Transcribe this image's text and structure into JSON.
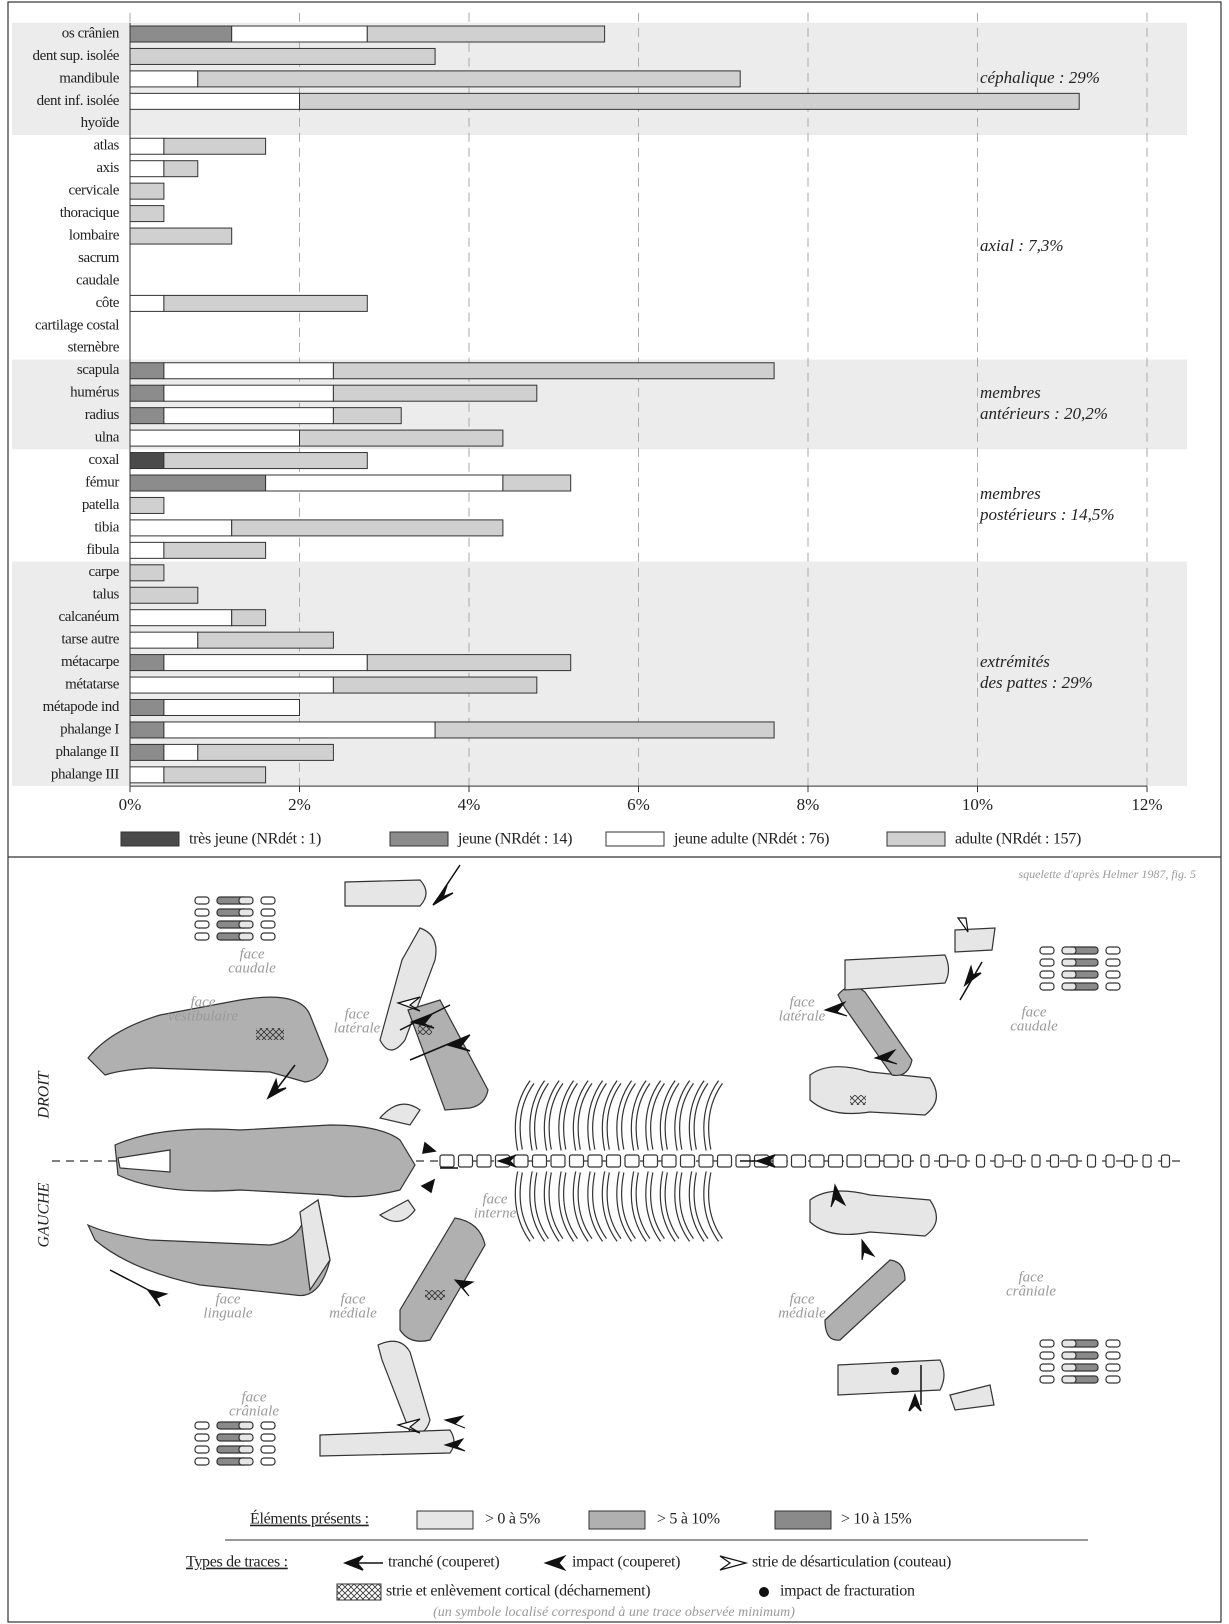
{
  "chart_data": {
    "type": "stacked-barh",
    "categories": [
      "os crânien",
      "dent sup. isolée",
      "mandibule",
      "dent inf. isolée",
      "hyoïde",
      "atlas",
      "axis",
      "cervicale",
      "thoracique",
      "lombaire",
      "sacrum",
      "caudale",
      "côte",
      "cartilage costal",
      "sternèbre",
      "scapula",
      "humérus",
      "radius",
      "ulna",
      "coxal",
      "fémur",
      "patella",
      "tibia",
      "fibula",
      "carpe",
      "talus",
      "calcanéum",
      "tarse autre",
      "métacarpe",
      "métatarse",
      "métapode ind",
      "phalange I",
      "phalange II",
      "phalange III"
    ],
    "series": [
      {
        "name": "très jeune (NRdét : 1)",
        "color": "#4a4a4a",
        "values": [
          null,
          null,
          null,
          null,
          null,
          null,
          null,
          null,
          null,
          null,
          null,
          null,
          null,
          null,
          null,
          null,
          null,
          null,
          null,
          0.4,
          null,
          null,
          null,
          null,
          null,
          null,
          null,
          null,
          null,
          null,
          null,
          null,
          null,
          null
        ]
      },
      {
        "name": "jeune (NRdét : 14)",
        "color": "#8c8c8c",
        "values": [
          1.2,
          null,
          null,
          null,
          null,
          null,
          null,
          null,
          null,
          null,
          null,
          null,
          null,
          null,
          null,
          0.4,
          0.4,
          0.4,
          null,
          null,
          1.6,
          null,
          null,
          null,
          null,
          null,
          null,
          null,
          0.4,
          null,
          0.4,
          0.4,
          0.4,
          null
        ]
      },
      {
        "name": "jeune adulte (NRdét : 76)",
        "color": "#ffffff",
        "values": [
          1.6,
          null,
          0.8,
          2.0,
          null,
          0.4,
          0.4,
          null,
          null,
          null,
          null,
          null,
          0.4,
          null,
          null,
          2.0,
          2.0,
          2.0,
          2.0,
          null,
          2.8,
          null,
          1.2,
          0.4,
          null,
          null,
          1.2,
          0.8,
          2.4,
          2.4,
          1.6,
          3.2,
          0.4,
          0.4
        ]
      },
      {
        "name": "adulte (NRdét : 157)",
        "color": "#d0d0d0",
        "values": [
          2.8,
          3.6,
          6.4,
          9.2,
          null,
          1.2,
          0.4,
          0.4,
          0.4,
          1.2,
          null,
          null,
          2.4,
          null,
          null,
          5.2,
          2.4,
          0.8,
          2.4,
          2.4,
          0.8,
          0.4,
          3.2,
          1.2,
          0.4,
          0.8,
          0.4,
          1.6,
          2.4,
          2.4,
          null,
          4.0,
          1.6,
          1.2
        ]
      }
    ],
    "groups": [
      [
        "céphalique : 29%"
      ],
      [
        "axial : 7,3%"
      ],
      [
        "membres",
        "antérieurs : 20,2%"
      ],
      [
        "membres",
        "postérieurs : 14,5%"
      ],
      [
        "extrémités",
        "des pattes : 29%"
      ]
    ],
    "xlim": [
      0,
      12
    ],
    "xticks": [
      {
        "value": 0,
        "label": "0%"
      },
      {
        "value": 2,
        "label": "2%"
      },
      {
        "value": 4,
        "label": "4%"
      },
      {
        "value": 6,
        "label": "6%"
      },
      {
        "value": 8,
        "label": "8%"
      },
      {
        "value": 10,
        "label": "10%"
      },
      {
        "value": 12,
        "label": "12%"
      }
    ],
    "grid": true
  },
  "diagram": {
    "source": "squelette d'après Helmer 1987, fig. 5",
    "sides": [
      "DROIT",
      "GAUCHE"
    ],
    "face_labels": [
      [
        "face",
        "caudale"
      ],
      [
        "face",
        "vestibulaire"
      ],
      [
        "face",
        "latérale"
      ],
      [
        "face",
        "interne"
      ],
      [
        "face",
        "linguale"
      ],
      [
        "face",
        "médiale"
      ],
      [
        "face",
        "crâniale"
      ],
      [
        "face",
        "latérale"
      ],
      [
        "face",
        "caudale"
      ],
      [
        "face",
        "médiale"
      ],
      [
        "face",
        "crâniale"
      ]
    ],
    "presence_title": "Éléments présents :",
    "presence": [
      "> 0 à 5%",
      "> 5 à 10%",
      "> 10 à 15%"
    ],
    "traces_title": "Types de traces :",
    "traces": [
      "tranché (couperet)",
      "impact (couperet)",
      "strie de désarticulation (couteau)",
      "strie et enlèvement cortical (décharnement)",
      "impact de fracturation"
    ],
    "note": "(un symbole localisé correspond à une trace observée minimum)"
  }
}
